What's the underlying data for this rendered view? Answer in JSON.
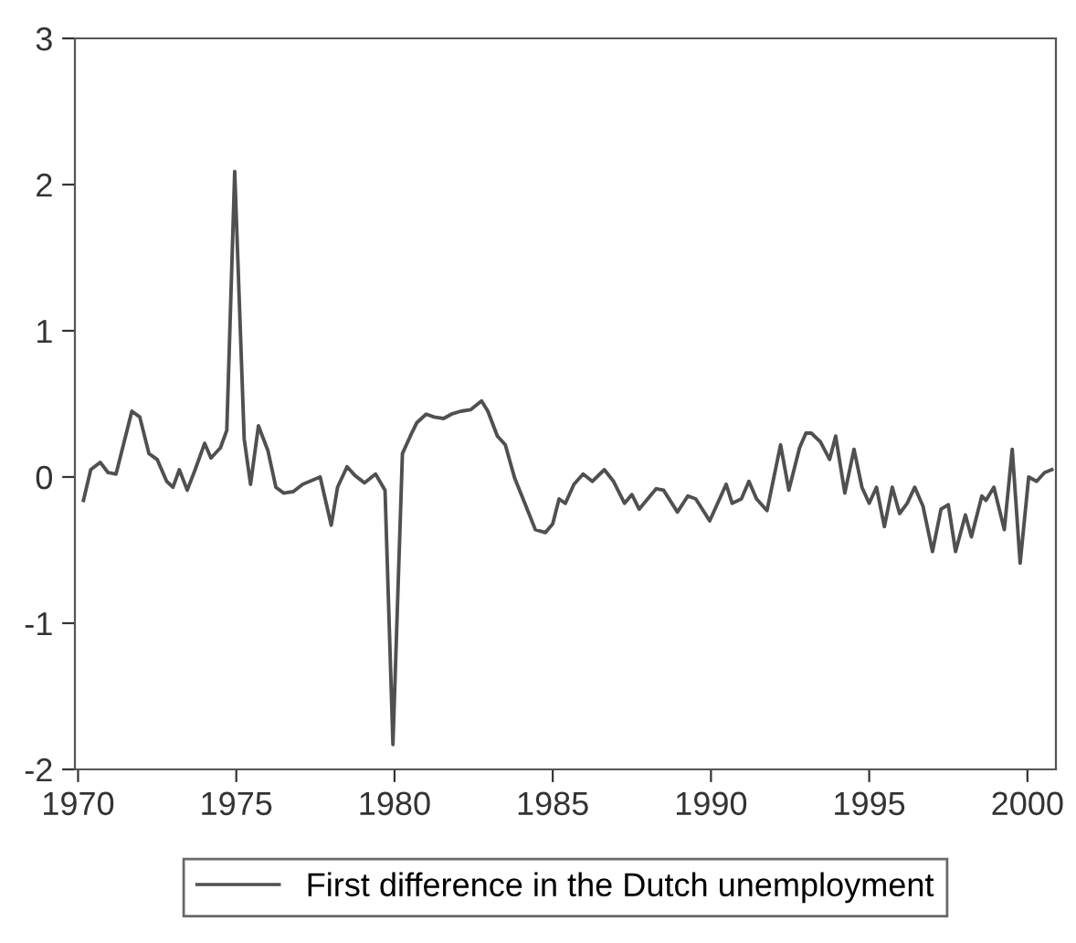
{
  "chart_data": {
    "type": "line",
    "xlim": [
      1969.9,
      2000.9
    ],
    "ylim": [
      -2,
      3
    ],
    "xticks": [
      1970,
      1975,
      1980,
      1985,
      1990,
      1995,
      2000
    ],
    "yticks": [
      -2,
      -1,
      0,
      1,
      2,
      3
    ],
    "grid": false,
    "legend": "bottom",
    "marker": "none",
    "line_style": "solid",
    "series": [
      {
        "name": "First difference in the Dutch unemployment",
        "color": "#505050",
        "x": [
          1970.17,
          1970.4,
          1970.7,
          1970.95,
          1971.2,
          1971.7,
          1971.95,
          1972.24,
          1972.5,
          1972.8,
          1973.0,
          1973.2,
          1973.45,
          1973.7,
          1974.0,
          1974.2,
          1974.5,
          1974.7,
          1974.95,
          1975.25,
          1975.45,
          1975.7,
          1976.0,
          1976.25,
          1976.5,
          1976.8,
          1977.1,
          1977.65,
          1978.0,
          1978.2,
          1978.5,
          1978.75,
          1979.05,
          1979.4,
          1979.7,
          1979.95,
          1980.25,
          1980.5,
          1980.7,
          1981.0,
          1981.25,
          1981.55,
          1981.8,
          1982.1,
          1982.4,
          1982.75,
          1982.95,
          1983.25,
          1983.5,
          1983.8,
          1984.1,
          1984.45,
          1984.77,
          1985.0,
          1985.2,
          1985.4,
          1985.67,
          1985.96,
          1986.25,
          1986.63,
          1986.92,
          1987.27,
          1987.5,
          1987.73,
          1988.27,
          1988.5,
          1988.94,
          1989.27,
          1989.52,
          1989.96,
          1990.48,
          1990.67,
          1990.96,
          1991.2,
          1991.44,
          1991.77,
          1992.2,
          1992.46,
          1992.8,
          1993.0,
          1993.17,
          1993.46,
          1993.75,
          1993.94,
          1994.23,
          1994.52,
          1994.77,
          1995.0,
          1995.23,
          1995.48,
          1995.73,
          1995.96,
          1996.2,
          1996.44,
          1996.7,
          1997.0,
          1997.27,
          1997.5,
          1997.73,
          1998.04,
          1998.23,
          1998.56,
          1998.69,
          1998.94,
          1999.27,
          1999.52,
          1999.77,
          2000.04,
          2000.29,
          2000.54,
          2000.77
        ],
        "values": [
          -0.16,
          0.05,
          0.1,
          0.03,
          0.02,
          0.45,
          0.41,
          0.16,
          0.12,
          -0.03,
          -0.07,
          0.05,
          -0.09,
          0.05,
          0.23,
          0.13,
          0.2,
          0.32,
          2.09,
          0.26,
          -0.05,
          0.35,
          0.18,
          -0.07,
          -0.11,
          -0.1,
          -0.05,
          0.0,
          -0.33,
          -0.07,
          0.07,
          0.01,
          -0.04,
          0.02,
          -0.09,
          -1.83,
          0.16,
          0.28,
          0.37,
          0.43,
          0.41,
          0.4,
          0.43,
          0.45,
          0.46,
          0.52,
          0.45,
          0.28,
          0.22,
          -0.01,
          -0.17,
          -0.36,
          -0.38,
          -0.32,
          -0.15,
          -0.18,
          -0.05,
          0.02,
          -0.03,
          0.05,
          -0.03,
          -0.18,
          -0.12,
          -0.22,
          -0.08,
          -0.09,
          -0.24,
          -0.13,
          -0.15,
          -0.3,
          -0.05,
          -0.18,
          -0.15,
          -0.03,
          -0.15,
          -0.23,
          0.22,
          -0.09,
          0.2,
          0.3,
          0.3,
          0.24,
          0.12,
          0.28,
          -0.11,
          0.19,
          -0.07,
          -0.18,
          -0.07,
          -0.34,
          -0.07,
          -0.25,
          -0.18,
          -0.07,
          -0.2,
          -0.51,
          -0.22,
          -0.19,
          -0.51,
          -0.26,
          -0.41,
          -0.13,
          -0.16,
          -0.07,
          -0.36,
          0.19,
          -0.59,
          0.0,
          -0.03,
          0.03,
          0.05
        ]
      }
    ]
  }
}
